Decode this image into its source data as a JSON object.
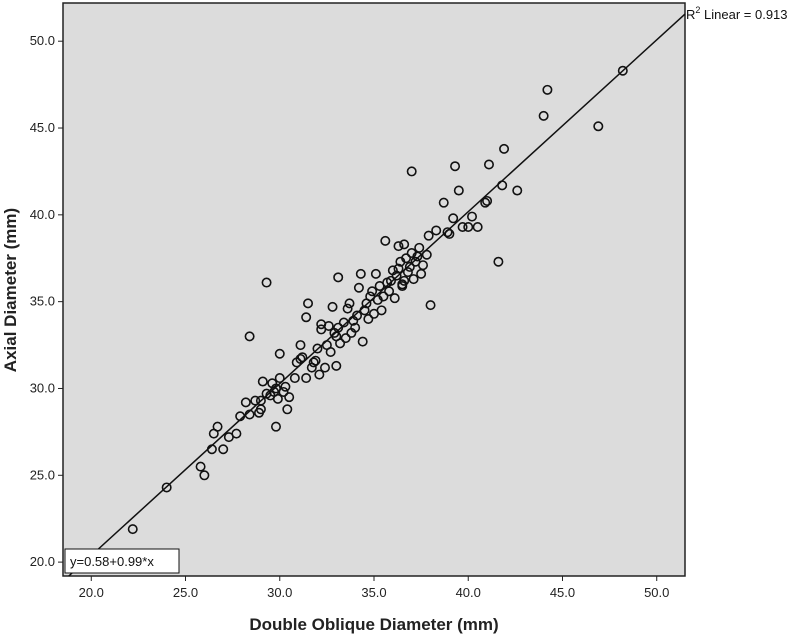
{
  "chart_data": {
    "type": "scatter",
    "xlabel": "Double Oblique Diameter (mm)",
    "ylabel": "Axial Diameter (mm)",
    "xlim": [
      18.5,
      51.5
    ],
    "ylim": [
      19.2,
      52.2
    ],
    "x_ticks": [
      "20.0",
      "25.0",
      "30.0",
      "35.0",
      "40.0",
      "45.0",
      "50.0"
    ],
    "y_ticks": [
      "20.0",
      "25.0",
      "30.0",
      "35.0",
      "40.0",
      "45.0",
      "50.0"
    ],
    "grid": false,
    "background_color": "#dcdcdc",
    "fit_line": {
      "intercept": 0.58,
      "slope": 0.99,
      "label": "y=0.58+0.99*x"
    },
    "r2_label": {
      "prefix": "R",
      "sup": "2",
      "text": " Linear = 0.913"
    },
    "points": [
      [
        22.2,
        21.9
      ],
      [
        24.0,
        24.3
      ],
      [
        25.8,
        25.5
      ],
      [
        26.0,
        25.0
      ],
      [
        26.4,
        26.5
      ],
      [
        26.5,
        27.4
      ],
      [
        26.7,
        27.8
      ],
      [
        27.0,
        26.5
      ],
      [
        27.3,
        27.2
      ],
      [
        27.7,
        27.4
      ],
      [
        27.9,
        28.4
      ],
      [
        28.2,
        29.2
      ],
      [
        28.4,
        28.5
      ],
      [
        28.4,
        33.0
      ],
      [
        28.7,
        29.3
      ],
      [
        28.9,
        28.6
      ],
      [
        29.0,
        28.8
      ],
      [
        29.0,
        29.3
      ],
      [
        29.1,
        30.4
      ],
      [
        29.3,
        36.1
      ],
      [
        29.3,
        29.7
      ],
      [
        29.5,
        29.6
      ],
      [
        29.6,
        30.3
      ],
      [
        29.7,
        29.8
      ],
      [
        29.8,
        30.0
      ],
      [
        29.8,
        27.8
      ],
      [
        29.9,
        29.4
      ],
      [
        30.0,
        30.6
      ],
      [
        30.0,
        32.0
      ],
      [
        30.2,
        29.8
      ],
      [
        30.3,
        30.1
      ],
      [
        30.4,
        28.8
      ],
      [
        30.5,
        29.5
      ],
      [
        30.8,
        30.6
      ],
      [
        30.9,
        31.5
      ],
      [
        31.1,
        31.7
      ],
      [
        31.1,
        32.5
      ],
      [
        31.2,
        31.8
      ],
      [
        31.4,
        30.6
      ],
      [
        31.4,
        34.1
      ],
      [
        31.5,
        34.9
      ],
      [
        31.7,
        31.2
      ],
      [
        31.8,
        31.5
      ],
      [
        31.9,
        31.6
      ],
      [
        32.0,
        32.3
      ],
      [
        32.1,
        30.8
      ],
      [
        32.2,
        33.4
      ],
      [
        32.2,
        33.7
      ],
      [
        32.4,
        31.2
      ],
      [
        32.5,
        32.5
      ],
      [
        32.6,
        33.6
      ],
      [
        32.7,
        32.1
      ],
      [
        32.8,
        34.7
      ],
      [
        32.9,
        33.2
      ],
      [
        33.0,
        33.0
      ],
      [
        33.0,
        31.3
      ],
      [
        33.1,
        33.5
      ],
      [
        33.1,
        36.4
      ],
      [
        33.2,
        32.6
      ],
      [
        33.4,
        33.8
      ],
      [
        33.5,
        32.9
      ],
      [
        33.6,
        34.6
      ],
      [
        33.7,
        34.9
      ],
      [
        33.8,
        33.2
      ],
      [
        33.9,
        33.9
      ],
      [
        34.0,
        33.5
      ],
      [
        34.1,
        34.2
      ],
      [
        34.2,
        35.8
      ],
      [
        34.3,
        36.6
      ],
      [
        34.4,
        32.7
      ],
      [
        34.5,
        34.5
      ],
      [
        34.6,
        34.9
      ],
      [
        34.7,
        34.0
      ],
      [
        34.8,
        35.3
      ],
      [
        34.9,
        35.6
      ],
      [
        35.0,
        34.3
      ],
      [
        35.1,
        36.6
      ],
      [
        35.2,
        35.1
      ],
      [
        35.3,
        35.9
      ],
      [
        35.4,
        34.5
      ],
      [
        35.5,
        35.3
      ],
      [
        35.6,
        38.5
      ],
      [
        35.7,
        36.1
      ],
      [
        35.8,
        35.6
      ],
      [
        35.9,
        36.2
      ],
      [
        36.0,
        36.8
      ],
      [
        36.1,
        35.2
      ],
      [
        36.2,
        36.5
      ],
      [
        36.3,
        36.9
      ],
      [
        36.3,
        38.2
      ],
      [
        36.4,
        37.3
      ],
      [
        36.5,
        36.0
      ],
      [
        36.5,
        35.9
      ],
      [
        36.6,
        38.3
      ],
      [
        36.6,
        36.2
      ],
      [
        36.7,
        37.5
      ],
      [
        36.8,
        36.7
      ],
      [
        36.9,
        37.0
      ],
      [
        37.0,
        37.8
      ],
      [
        37.1,
        36.3
      ],
      [
        37.2,
        37.3
      ],
      [
        37.3,
        37.6
      ],
      [
        37.4,
        38.1
      ],
      [
        37.5,
        36.6
      ],
      [
        37.6,
        37.1
      ],
      [
        37.8,
        37.7
      ],
      [
        37.9,
        38.8
      ],
      [
        38.0,
        34.8
      ],
      [
        38.3,
        39.1
      ],
      [
        38.7,
        40.7
      ],
      [
        38.9,
        39.0
      ],
      [
        39.0,
        38.9
      ],
      [
        39.2,
        39.8
      ],
      [
        39.3,
        42.8
      ],
      [
        39.5,
        41.4
      ],
      [
        39.7,
        39.3
      ],
      [
        40.0,
        39.3
      ],
      [
        40.2,
        39.9
      ],
      [
        40.5,
        39.3
      ],
      [
        40.9,
        40.7
      ],
      [
        41.0,
        40.8
      ],
      [
        41.1,
        42.9
      ],
      [
        41.6,
        37.3
      ],
      [
        41.8,
        41.7
      ],
      [
        41.9,
        43.8
      ],
      [
        42.6,
        41.4
      ],
      [
        37.0,
        42.5
      ],
      [
        44.0,
        45.7
      ],
      [
        44.2,
        47.2
      ],
      [
        46.9,
        45.1
      ],
      [
        48.2,
        48.3
      ]
    ]
  }
}
